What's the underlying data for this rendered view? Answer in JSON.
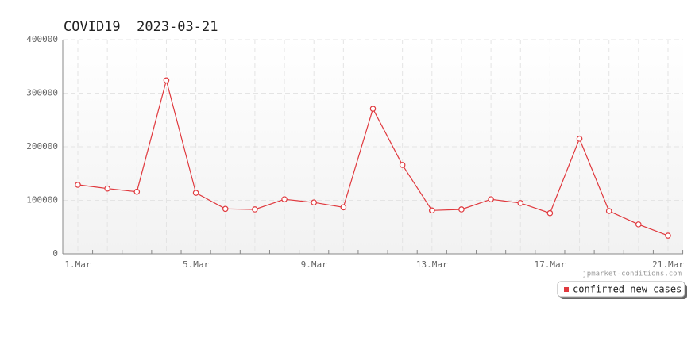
{
  "chart_data": {
    "type": "line",
    "title": "COVID19  2023-03-21",
    "watermark": "jpmarket-conditions.com",
    "categories": [
      "1.Mar",
      null,
      null,
      null,
      "5.Mar",
      null,
      null,
      null,
      "9.Mar",
      null,
      null,
      null,
      "13.Mar",
      null,
      null,
      null,
      "17.Mar",
      null,
      null,
      null,
      "21.Mar"
    ],
    "series": [
      {
        "name": "confirmed new cases",
        "color": "#e0393e",
        "values": [
          129000,
          122000,
          116000,
          324000,
          114000,
          84000,
          83000,
          102000,
          96000,
          87000,
          271000,
          166000,
          81000,
          83000,
          102000,
          95000,
          76000,
          215000,
          80000,
          55000,
          34000
        ]
      }
    ],
    "ylim": [
      0,
      400000
    ],
    "yticks": [
      0,
      100000,
      200000,
      300000,
      400000
    ],
    "grid": true,
    "legend": "bottom-right"
  }
}
